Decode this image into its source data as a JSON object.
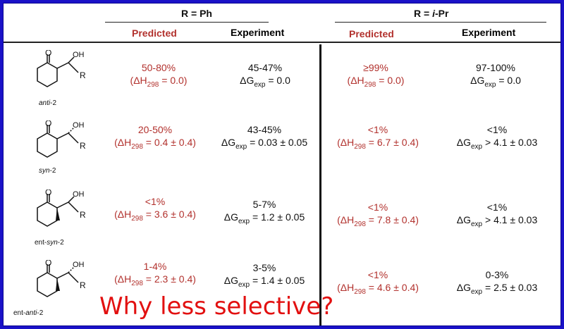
{
  "header": {
    "group_ph": "R = Ph",
    "group_ipr_prefix": "R = ",
    "group_ipr_italic": "i",
    "group_ipr_suffix": "-Pr",
    "predicted_label": "Predicted",
    "experiment_label": "Experiment"
  },
  "rows": [
    {
      "name_italic": "anti",
      "name_suffix": "-2",
      "name_prefix": "",
      "ph_pred_pct": "50-80%",
      "ph_pred_val": "0.0",
      "ph_exp_pct": "45-47%",
      "ph_exp_op": "= 0.0",
      "ipr_pred_pct": "≥99%",
      "ipr_pred_val": "0.0",
      "ipr_exp_pct": "97-100%",
      "ipr_exp_op": "= 0.0"
    },
    {
      "name_italic": "syn",
      "name_suffix": "-2",
      "name_prefix": "",
      "ph_pred_pct": "20-50%",
      "ph_pred_val": "0.4 ± 0.4",
      "ph_exp_pct": "43-45%",
      "ph_exp_op": "= 0.03 ± 0.05",
      "ipr_pred_pct": "<1%",
      "ipr_pred_val": "6.7 ± 0.4",
      "ipr_exp_pct": "<1%",
      "ipr_exp_op": "> 4.1 ± 0.03"
    },
    {
      "name_italic": "syn",
      "name_suffix": "-2",
      "name_prefix": "ent-",
      "ph_pred_pct": "<1%",
      "ph_pred_val": "3.6 ± 0.4",
      "ph_exp_pct": "5-7%",
      "ph_exp_op": "= 1.2  ± 0.05",
      "ipr_pred_pct": "<1%",
      "ipr_pred_val": "7.8 ± 0.4",
      "ipr_exp_pct": "<1%",
      "ipr_exp_op": "> 4.1 ± 0.03"
    },
    {
      "name_italic": "anti",
      "name_suffix": "-2",
      "name_prefix": "ent-",
      "ph_pred_pct": "1-4%",
      "ph_pred_val": "2.3 ± 0.4",
      "ph_exp_pct": "3-5%",
      "ph_exp_op": "= 1.4 ± 0.05",
      "ipr_pred_pct": "<1%",
      "ipr_pred_val": "4.6 ± 0.4",
      "ipr_exp_pct": "0-3%",
      "ipr_exp_op": "= 2.5 ± 0.03"
    }
  ],
  "labels": {
    "dh_prefix": "(ΔH",
    "dh_sub": "298",
    "dh_eq": " = ",
    "dh_close": ")",
    "dg": "ΔG",
    "dg_sub": "exp",
    "oh": "OH",
    "o": "O",
    "r": "R"
  },
  "overlay": {
    "question": "Why less selective?"
  },
  "colors": {
    "border_blue": "#1a12c8",
    "predicted_red": "#b2312d",
    "overlay_red": "#e21010"
  }
}
